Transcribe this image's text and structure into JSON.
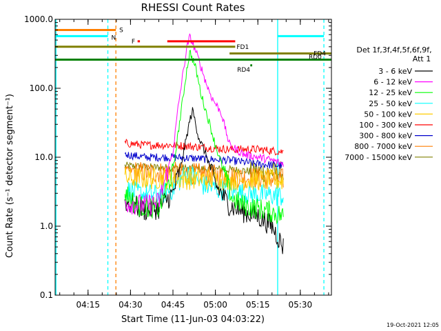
{
  "chart_data": {
    "type": "line",
    "title": "RHESSI Count Rates",
    "xlabel": "Start Time (11-Jun-03 04:03:22)",
    "ylabel": "Count Rate (s⁻¹ detector segment⁻¹)",
    "yscale": "log",
    "ylim": [
      0.1,
      1000
    ],
    "xlim": [
      "04:03:22",
      "05:41:00"
    ],
    "x_ticks": [
      "04:15",
      "04:30",
      "04:45",
      "05:00",
      "05:15",
      "05:30"
    ],
    "y_ticks": [
      "0.1",
      "1.0",
      "10.0",
      "100.0",
      "1000.0"
    ],
    "grid": false,
    "legend_position": "right",
    "legend_header": [
      "Det 1f,3f,4f,5f,6f,9f,",
      "Att 1"
    ],
    "footer_date": "19-Oct-2021 12:05",
    "vertical_lines": [
      {
        "time": "04:03:40",
        "color": "#00ffff",
        "style": "solid"
      },
      {
        "time": "04:22:00",
        "color": "#00ffff",
        "style": "dashed"
      },
      {
        "time": "04:24:50",
        "color": "#ff7f00",
        "style": "dashed"
      },
      {
        "time": "05:22:00",
        "color": "#00ffff",
        "style": "solid"
      },
      {
        "time": "05:38:20",
        "color": "#00ffff",
        "style": "dashed"
      }
    ],
    "flag_bars": [
      {
        "label": "S",
        "color": "#ff7f00",
        "start": "04:03:22",
        "end": "04:24:50",
        "y": 700,
        "thick": true
      },
      {
        "label": "N",
        "color": "#00ffff",
        "start": "04:03:22",
        "end": "04:22:00",
        "y": 570,
        "thick": true
      },
      {
        "label": "",
        "color": "#00ffff",
        "start": "05:22:00",
        "end": "05:38:20",
        "y": 570,
        "thick": true
      },
      {
        "label": "F",
        "color": "#ff0000",
        "start": "04:32:30",
        "end": "04:33:20",
        "y": 480,
        "thick": true
      },
      {
        "label": "",
        "color": "#ff0000",
        "start": "04:43:00",
        "end": "05:07:00",
        "y": 480,
        "thick": true
      },
      {
        "label": "FD1",
        "color": "#808000",
        "start": "04:03:22",
        "end": "05:07:00",
        "y": 400,
        "thick": true
      },
      {
        "label": "FD4",
        "color": "#808000",
        "start": "05:05:00",
        "end": "05:41:00",
        "y": 320,
        "thick": true
      },
      {
        "label": "RD0",
        "color": "#008000",
        "start": "04:03:22",
        "end": "05:41:00",
        "y": 260,
        "thick": true
      },
      {
        "label": "RD4",
        "color": "#008000",
        "start": "05:12:20",
        "end": "05:13:00",
        "y": 215,
        "thick": true
      }
    ],
    "series": [
      {
        "name": "3 - 6 keV",
        "color": "#000000",
        "points": [
          [
            "04:28",
            2.3
          ],
          [
            "04:35",
            1.7
          ],
          [
            "04:40",
            1.8
          ],
          [
            "04:45",
            3.0
          ],
          [
            "04:48",
            8
          ],
          [
            "04:51",
            35
          ],
          [
            "04:52",
            48
          ],
          [
            "04:54",
            20
          ],
          [
            "04:57",
            10
          ],
          [
            "05:00",
            4
          ],
          [
            "05:05",
            2.0
          ],
          [
            "05:10",
            1.6
          ],
          [
            "05:15",
            1.4
          ],
          [
            "05:20",
            1.0
          ],
          [
            "05:24",
            0.5
          ]
        ]
      },
      {
        "name": "6 - 12 keV",
        "color": "#ff00ff",
        "points": [
          [
            "04:28",
            2.2
          ],
          [
            "04:35",
            2.0
          ],
          [
            "04:40",
            2.2
          ],
          [
            "04:45",
            12
          ],
          [
            "04:47",
            60
          ],
          [
            "04:49",
            220
          ],
          [
            "04:50",
            400
          ],
          [
            "04:51",
            560
          ],
          [
            "04:53",
            350
          ],
          [
            "04:55",
            200
          ],
          [
            "04:57",
            110
          ],
          [
            "04:59",
            70
          ],
          [
            "05:00",
            60
          ],
          [
            "05:02",
            45
          ],
          [
            "05:05",
            15
          ],
          [
            "05:10",
            11
          ],
          [
            "05:15",
            10
          ],
          [
            "05:20",
            9
          ],
          [
            "05:24",
            8
          ]
        ]
      },
      {
        "name": "12 - 25 keV",
        "color": "#00ff00",
        "points": [
          [
            "04:28",
            3.2
          ],
          [
            "04:32",
            2.0
          ],
          [
            "04:40",
            1.8
          ],
          [
            "04:45",
            6
          ],
          [
            "04:47",
            25
          ],
          [
            "04:49",
            100
          ],
          [
            "04:50",
            200
          ],
          [
            "04:51",
            340
          ],
          [
            "04:53",
            200
          ],
          [
            "04:55",
            80
          ],
          [
            "04:58",
            30
          ],
          [
            "05:00",
            15
          ],
          [
            "05:03",
            6
          ],
          [
            "05:06",
            2.5
          ],
          [
            "05:10",
            2.0
          ],
          [
            "05:15",
            1.8
          ],
          [
            "05:20",
            1.6
          ],
          [
            "05:24",
            1.4
          ]
        ]
      },
      {
        "name": "25 - 50 keV",
        "color": "#00ffff",
        "points": [
          [
            "04:28",
            3.4
          ],
          [
            "04:35",
            2.9
          ],
          [
            "04:40",
            2.8
          ],
          [
            "04:45",
            3.5
          ],
          [
            "04:49",
            5.5
          ],
          [
            "04:51",
            5.8
          ],
          [
            "04:55",
            4.0
          ],
          [
            "05:00",
            3.5
          ],
          [
            "05:05",
            3.2
          ],
          [
            "05:10",
            3.0
          ],
          [
            "05:15",
            2.9
          ],
          [
            "05:20",
            2.8
          ],
          [
            "05:24",
            2.7
          ]
        ]
      },
      {
        "name": "50 - 100 keV",
        "color": "#ffcc00",
        "points": [
          [
            "04:28",
            5.0
          ],
          [
            "04:35",
            4.9
          ],
          [
            "04:45",
            4.9
          ],
          [
            "04:55",
            4.8
          ],
          [
            "05:05",
            4.7
          ],
          [
            "05:15",
            4.7
          ],
          [
            "05:24",
            4.6
          ]
        ]
      },
      {
        "name": "100 - 300 keV",
        "color": "#ff0000",
        "points": [
          [
            "04:28",
            16
          ],
          [
            "04:35",
            15
          ],
          [
            "04:45",
            15
          ],
          [
            "04:55",
            14
          ],
          [
            "05:05",
            13
          ],
          [
            "05:15",
            13
          ],
          [
            "05:24",
            12
          ]
        ]
      },
      {
        "name": "300 - 800 keV",
        "color": "#0000cc",
        "points": [
          [
            "04:28",
            11
          ],
          [
            "04:35",
            10
          ],
          [
            "04:45",
            10
          ],
          [
            "04:55",
            9.5
          ],
          [
            "05:05",
            9
          ],
          [
            "05:15",
            8
          ],
          [
            "05:24",
            7.5
          ]
        ]
      },
      {
        "name": "800 - 7000 keV",
        "color": "#ff7f00",
        "points": [
          [
            "04:28",
            6.5
          ],
          [
            "04:35",
            6.0
          ],
          [
            "04:45",
            6.0
          ],
          [
            "04:55",
            5.7
          ],
          [
            "05:05",
            5.3
          ],
          [
            "05:15",
            5.0
          ],
          [
            "05:24",
            4.8
          ]
        ]
      },
      {
        "name": "7000 - 15000 keV",
        "color": "#808000",
        "points": [
          [
            "04:28",
            7.5
          ],
          [
            "04:35",
            7.2
          ],
          [
            "04:45",
            7.0
          ],
          [
            "04:55",
            6.8
          ],
          [
            "05:05",
            6.6
          ],
          [
            "05:15",
            6.2
          ],
          [
            "05:24",
            6.0
          ]
        ]
      }
    ]
  }
}
